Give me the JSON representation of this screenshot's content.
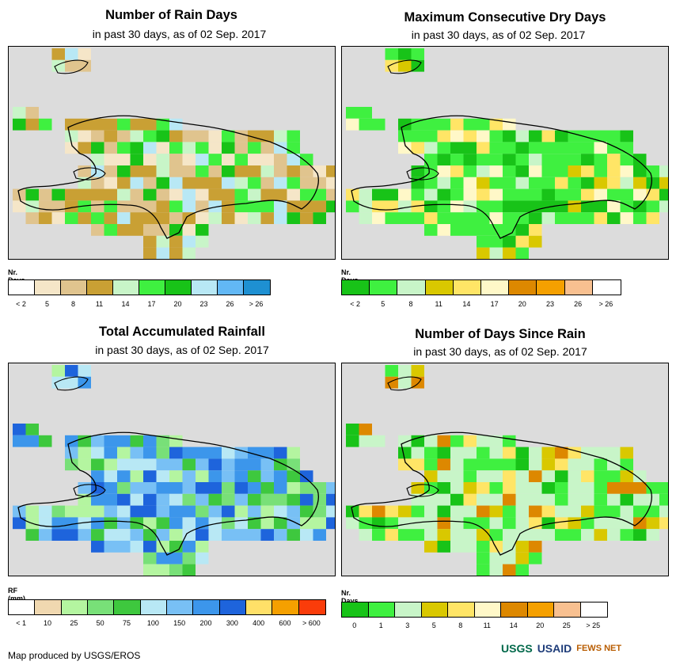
{
  "panels": [
    {
      "title": "Number of Rain Days",
      "subtitle": "in past 30 days, as of 02 Sep. 2017",
      "legend_unit": "Nr. Days",
      "legend_colors": [
        "#ffffff",
        "#f5e6c8",
        "#e0c48e",
        "#c9a034",
        "#c8f5c8",
        "#3ff040",
        "#18c318",
        "#b8e8f5",
        "#62b8f5",
        "#1e90d2"
      ],
      "legend_ticks": [
        "< 2",
        "5",
        "8",
        "11",
        "14",
        "17",
        "20",
        "23",
        "26",
        "> 26"
      ],
      "cells": "raindays"
    },
    {
      "title": "Maximum Consecutive Dry Days",
      "subtitle": "in past 30 days, as of 02 Sep. 2017",
      "legend_unit": "Nr. Days",
      "legend_colors": [
        "#18c318",
        "#3ff040",
        "#c8f5c8",
        "#d9c800",
        "#ffe566",
        "#fff8c8",
        "#dd8800",
        "#f5a000",
        "#f8c090",
        "#ffffff"
      ],
      "legend_ticks": [
        "< 2",
        "5",
        "8",
        "11",
        "14",
        "17",
        "20",
        "23",
        "26",
        "> 26"
      ],
      "cells": "drydays"
    },
    {
      "title": "Total Accumulated Rainfall",
      "subtitle": "in past 30 days, as of 02 Sep. 2017",
      "legend_unit": "RF (mm)",
      "legend_colors": [
        "#ffffff",
        "#f0d8b0",
        "#b4f5a0",
        "#78e078",
        "#3ec83e",
        "#b8e8f5",
        "#78c0f5",
        "#3c96eb",
        "#1e64dc",
        "#ffe068",
        "#f5a000",
        "#fa3c0a"
      ],
      "legend_ticks": [
        "< 1",
        "10",
        "25",
        "50",
        "75",
        "100",
        "150",
        "200",
        "300",
        "400",
        "600",
        "> 600"
      ],
      "cells": "rainfall"
    },
    {
      "title": "Number of Days Since Rain",
      "subtitle": "in past 30 days, as of 02 Sep. 2017",
      "legend_unit": "Nr. Days",
      "legend_colors": [
        "#18c318",
        "#3ff040",
        "#c8f5c8",
        "#d9c800",
        "#ffe566",
        "#fff8c8",
        "#dd8800",
        "#f5a000",
        "#f8c090",
        "#ffffff"
      ],
      "legend_ticks": [
        "0",
        "1",
        "3",
        "5",
        "8",
        "11",
        "14",
        "20",
        "25",
        "> 25"
      ],
      "cells": "sincerain"
    }
  ],
  "footer": "Map produced by USGS/EROS",
  "logos": [
    "USGS",
    "USAID",
    "FEWS NET"
  ]
}
